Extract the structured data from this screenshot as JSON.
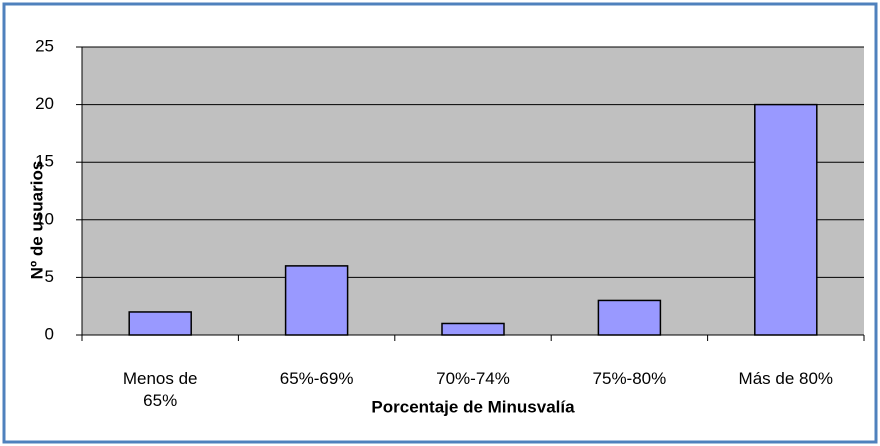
{
  "chart_data": {
    "type": "bar",
    "categories": [
      "Menos de 65%",
      "65%-69%",
      "70%-74%",
      "75%-80%",
      "Más de 80%"
    ],
    "values": [
      2,
      6,
      1,
      3,
      20
    ],
    "color": "#9999ff",
    "x_label": "Porcentaje de Minusvalía",
    "y_label": "Nº de usuarios",
    "ylim": [
      0,
      25
    ],
    "yticks": [
      0,
      5,
      10,
      15,
      20,
      25
    ],
    "grid": true
  }
}
